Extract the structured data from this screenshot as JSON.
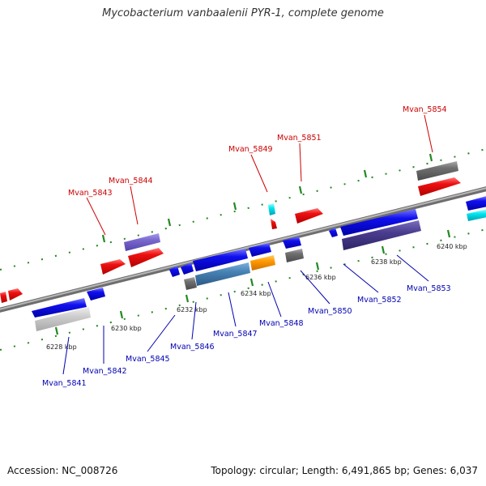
{
  "title": "Mycobacterium vanbaalenii PYR-1, complete genome",
  "footer": {
    "accession": "Accession: NC_008726",
    "stats": "Topology: circular; Length: 6,491,865 bp; Genes: 6,037"
  },
  "colors": {
    "forward_label": "#cc0000",
    "reverse_label": "#0000b0",
    "backbone": "#808080",
    "tick_dots": "#228822"
  },
  "ticks": [
    {
      "label": "6228 kbp"
    },
    {
      "label": "6230 kbp"
    },
    {
      "label": "6232 kbp"
    },
    {
      "label": "6234 kbp"
    },
    {
      "label": "6236 kbp"
    },
    {
      "label": "6238 kbp"
    },
    {
      "label": "6240 kbp"
    }
  ],
  "genes": [
    {
      "name": "Mvan_5841",
      "strand": "reverse"
    },
    {
      "name": "Mvan_5842",
      "strand": "reverse"
    },
    {
      "name": "Mvan_5843",
      "strand": "forward"
    },
    {
      "name": "Mvan_5844",
      "strand": "forward"
    },
    {
      "name": "Mvan_5845",
      "strand": "reverse"
    },
    {
      "name": "Mvan_5846",
      "strand": "reverse"
    },
    {
      "name": "Mvan_5847",
      "strand": "reverse"
    },
    {
      "name": "Mvan_5848",
      "strand": "reverse"
    },
    {
      "name": "Mvan_5849",
      "strand": "forward"
    },
    {
      "name": "Mvan_5850",
      "strand": "reverse"
    },
    {
      "name": "Mvan_5851",
      "strand": "forward"
    },
    {
      "name": "Mvan_5852",
      "strand": "reverse"
    },
    {
      "name": "Mvan_5853",
      "strand": "reverse"
    },
    {
      "name": "Mvan_5854",
      "strand": "forward"
    }
  ]
}
